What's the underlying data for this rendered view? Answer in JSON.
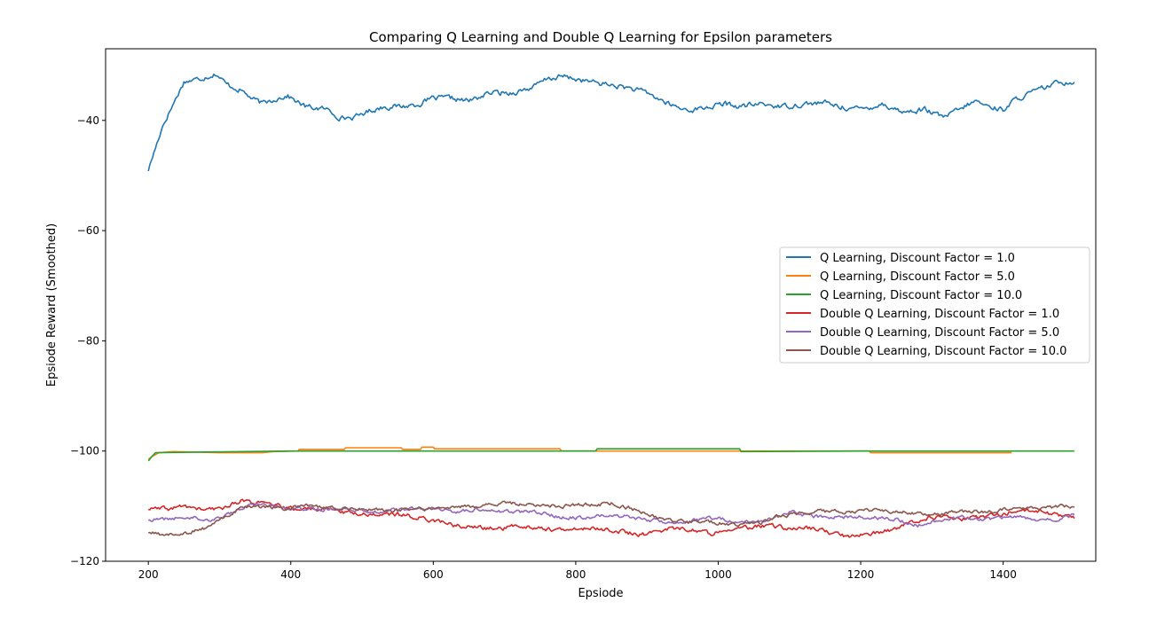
{
  "chart_data": {
    "type": "line",
    "title": "Comparing Q Learning and Double Q Learning for Epsilon parameters",
    "xlabel": "Epsiode",
    "ylabel": "Epsiode Reward (Smoothed)",
    "xlim": [
      140,
      1530
    ],
    "ylim": [
      -120,
      -27
    ],
    "xticks": [
      200,
      400,
      600,
      800,
      1000,
      1200,
      1400
    ],
    "yticks": [
      -120,
      -100,
      -80,
      -60,
      -40
    ],
    "xtick_labels": [
      "200",
      "400",
      "600",
      "800",
      "1000",
      "1200",
      "1400"
    ],
    "ytick_labels": [
      "−120",
      "−100",
      "−80",
      "−60",
      "−40"
    ],
    "grid": false,
    "legend_position": "center-right",
    "series": [
      {
        "name": "Q Learning, Discount Factor = 1.0",
        "color": "#1f77b4",
        "noise": 0.5,
        "points": [
          [
            200,
            -49
          ],
          [
            210,
            -45
          ],
          [
            220,
            -41
          ],
          [
            235,
            -37
          ],
          [
            250,
            -33
          ],
          [
            270,
            -32.5
          ],
          [
            295,
            -31.5
          ],
          [
            310,
            -33.5
          ],
          [
            330,
            -34.5
          ],
          [
            345,
            -36
          ],
          [
            360,
            -37
          ],
          [
            380,
            -36
          ],
          [
            395,
            -35.5
          ],
          [
            420,
            -37.5
          ],
          [
            450,
            -38
          ],
          [
            470,
            -39.5
          ],
          [
            490,
            -39.5
          ],
          [
            505,
            -38.5
          ],
          [
            530,
            -37.5
          ],
          [
            555,
            -37.5
          ],
          [
            580,
            -37
          ],
          [
            600,
            -36
          ],
          [
            625,
            -36
          ],
          [
            650,
            -36.5
          ],
          [
            680,
            -35
          ],
          [
            710,
            -35
          ],
          [
            740,
            -34
          ],
          [
            760,
            -32.5
          ],
          [
            780,
            -32
          ],
          [
            800,
            -32.5
          ],
          [
            820,
            -33
          ],
          [
            845,
            -33.5
          ],
          [
            870,
            -34
          ],
          [
            900,
            -35
          ],
          [
            930,
            -37
          ],
          [
            950,
            -38
          ],
          [
            970,
            -38
          ],
          [
            990,
            -37.5
          ],
          [
            1010,
            -37
          ],
          [
            1030,
            -37.5
          ],
          [
            1060,
            -37
          ],
          [
            1090,
            -37.5
          ],
          [
            1120,
            -37
          ],
          [
            1150,
            -36.8
          ],
          [
            1170,
            -37.5
          ],
          [
            1200,
            -38
          ],
          [
            1230,
            -37
          ],
          [
            1260,
            -38.5
          ],
          [
            1290,
            -38
          ],
          [
            1315,
            -39.5
          ],
          [
            1340,
            -38
          ],
          [
            1360,
            -36.5
          ],
          [
            1380,
            -37.5
          ],
          [
            1400,
            -38
          ],
          [
            1420,
            -36
          ],
          [
            1440,
            -35
          ],
          [
            1460,
            -34
          ],
          [
            1480,
            -33
          ],
          [
            1500,
            -33
          ]
        ]
      },
      {
        "name": "Q Learning, Discount Factor = 5.0",
        "color": "#ff7f0e",
        "noise": 0,
        "points": [
          [
            200,
            -101.5
          ],
          [
            205,
            -101
          ],
          [
            215,
            -100.3
          ],
          [
            235,
            -100.1
          ],
          [
            300,
            -100.3
          ],
          [
            360,
            -100.3
          ],
          [
            375,
            -100.1
          ],
          [
            410,
            -100
          ],
          [
            412,
            -99.7
          ],
          [
            475,
            -99.7
          ],
          [
            477,
            -99.4
          ],
          [
            555,
            -99.4
          ],
          [
            557,
            -99.7
          ],
          [
            582,
            -99.7
          ],
          [
            584,
            -99.3
          ],
          [
            600,
            -99.3
          ],
          [
            602,
            -99.6
          ],
          [
            778,
            -99.6
          ],
          [
            780,
            -100
          ],
          [
            1212,
            -100
          ],
          [
            1214,
            -100.3
          ],
          [
            1412,
            -100.3
          ]
        ]
      },
      {
        "name": "Q Learning, Discount Factor = 10.0",
        "color": "#2ca02c",
        "noise": 0,
        "points": [
          [
            200,
            -101.8
          ],
          [
            205,
            -101
          ],
          [
            210,
            -100.3
          ],
          [
            270,
            -100.2
          ],
          [
            400,
            -100
          ],
          [
            828,
            -100
          ],
          [
            830,
            -99.6
          ],
          [
            1030,
            -99.6
          ],
          [
            1032,
            -100.1
          ],
          [
            1200,
            -100
          ],
          [
            1500,
            -100
          ]
        ]
      },
      {
        "name": "Double Q Learning, Discount Factor = 1.0",
        "color": "#d62728",
        "noise": 0.4,
        "points": [
          [
            200,
            -110.5
          ],
          [
            230,
            -110.5
          ],
          [
            250,
            -110
          ],
          [
            280,
            -110.7
          ],
          [
            300,
            -110.5
          ],
          [
            330,
            -109
          ],
          [
            360,
            -109.5
          ],
          [
            380,
            -110
          ],
          [
            400,
            -110.5
          ],
          [
            450,
            -110.5
          ],
          [
            500,
            -111.5
          ],
          [
            550,
            -111.5
          ],
          [
            600,
            -112.5
          ],
          [
            630,
            -113.5
          ],
          [
            670,
            -114
          ],
          [
            700,
            -114
          ],
          [
            720,
            -113.5
          ],
          [
            750,
            -114
          ],
          [
            790,
            -114.5
          ],
          [
            810,
            -114
          ],
          [
            850,
            -114.3
          ],
          [
            880,
            -115
          ],
          [
            900,
            -115.2
          ],
          [
            930,
            -114
          ],
          [
            960,
            -114.2
          ],
          [
            990,
            -115
          ],
          [
            1010,
            -114
          ],
          [
            1040,
            -114
          ],
          [
            1070,
            -113.5
          ],
          [
            1100,
            -114
          ],
          [
            1130,
            -114
          ],
          [
            1180,
            -115.5
          ],
          [
            1210,
            -115
          ],
          [
            1240,
            -114.5
          ],
          [
            1270,
            -113
          ],
          [
            1300,
            -112
          ],
          [
            1320,
            -112
          ],
          [
            1340,
            -112.5
          ],
          [
            1360,
            -112
          ],
          [
            1400,
            -111.5
          ],
          [
            1420,
            -110.7
          ],
          [
            1450,
            -111
          ],
          [
            1470,
            -111.5
          ],
          [
            1500,
            -112
          ]
        ]
      },
      {
        "name": "Double Q Learning, Discount Factor = 5.0",
        "color": "#9467bd",
        "noise": 0.35,
        "points": [
          [
            200,
            -112.5
          ],
          [
            230,
            -112.3
          ],
          [
            260,
            -112
          ],
          [
            290,
            -112.5
          ],
          [
            320,
            -111
          ],
          [
            350,
            -109.5
          ],
          [
            380,
            -110
          ],
          [
            410,
            -110.3
          ],
          [
            440,
            -110.5
          ],
          [
            480,
            -110.5
          ],
          [
            520,
            -111
          ],
          [
            560,
            -110.5
          ],
          [
            600,
            -110.5
          ],
          [
            630,
            -111
          ],
          [
            670,
            -110.5
          ],
          [
            700,
            -111
          ],
          [
            740,
            -111
          ],
          [
            780,
            -112
          ],
          [
            820,
            -112
          ],
          [
            850,
            -111.5
          ],
          [
            880,
            -112
          ],
          [
            900,
            -112.5
          ],
          [
            940,
            -113
          ],
          [
            970,
            -112.5
          ],
          [
            1000,
            -112
          ],
          [
            1020,
            -113
          ],
          [
            1050,
            -113
          ],
          [
            1080,
            -112
          ],
          [
            1100,
            -111
          ],
          [
            1140,
            -112
          ],
          [
            1180,
            -112
          ],
          [
            1210,
            -112
          ],
          [
            1250,
            -112.5
          ],
          [
            1280,
            -113.5
          ],
          [
            1310,
            -112.5
          ],
          [
            1340,
            -112
          ],
          [
            1380,
            -112.5
          ],
          [
            1420,
            -112
          ],
          [
            1450,
            -112.5
          ],
          [
            1480,
            -112.5
          ],
          [
            1500,
            -111.5
          ]
        ]
      },
      {
        "name": "Double Q Learning, Discount Factor = 10.0",
        "color": "#8c564b",
        "noise": 0.35,
        "points": [
          [
            200,
            -114.8
          ],
          [
            220,
            -115.2
          ],
          [
            250,
            -115
          ],
          [
            280,
            -114
          ],
          [
            300,
            -112.5
          ],
          [
            330,
            -110.5
          ],
          [
            360,
            -110
          ],
          [
            390,
            -110.5
          ],
          [
            420,
            -110
          ],
          [
            460,
            -110.3
          ],
          [
            500,
            -110.5
          ],
          [
            540,
            -110.8
          ],
          [
            580,
            -110.5
          ],
          [
            620,
            -110.3
          ],
          [
            660,
            -110
          ],
          [
            700,
            -109.5
          ],
          [
            740,
            -109.7
          ],
          [
            780,
            -110
          ],
          [
            820,
            -109.7
          ],
          [
            850,
            -109.5
          ],
          [
            880,
            -110.5
          ],
          [
            910,
            -112
          ],
          [
            940,
            -112.7
          ],
          [
            970,
            -112.8
          ],
          [
            1000,
            -113
          ],
          [
            1030,
            -113.5
          ],
          [
            1060,
            -113
          ],
          [
            1080,
            -112
          ],
          [
            1110,
            -111.5
          ],
          [
            1140,
            -111
          ],
          [
            1180,
            -111
          ],
          [
            1220,
            -110.8
          ],
          [
            1260,
            -111
          ],
          [
            1300,
            -111.5
          ],
          [
            1340,
            -111
          ],
          [
            1380,
            -111
          ],
          [
            1420,
            -110.2
          ],
          [
            1450,
            -110.5
          ],
          [
            1480,
            -110
          ],
          [
            1500,
            -110
          ]
        ]
      }
    ]
  }
}
